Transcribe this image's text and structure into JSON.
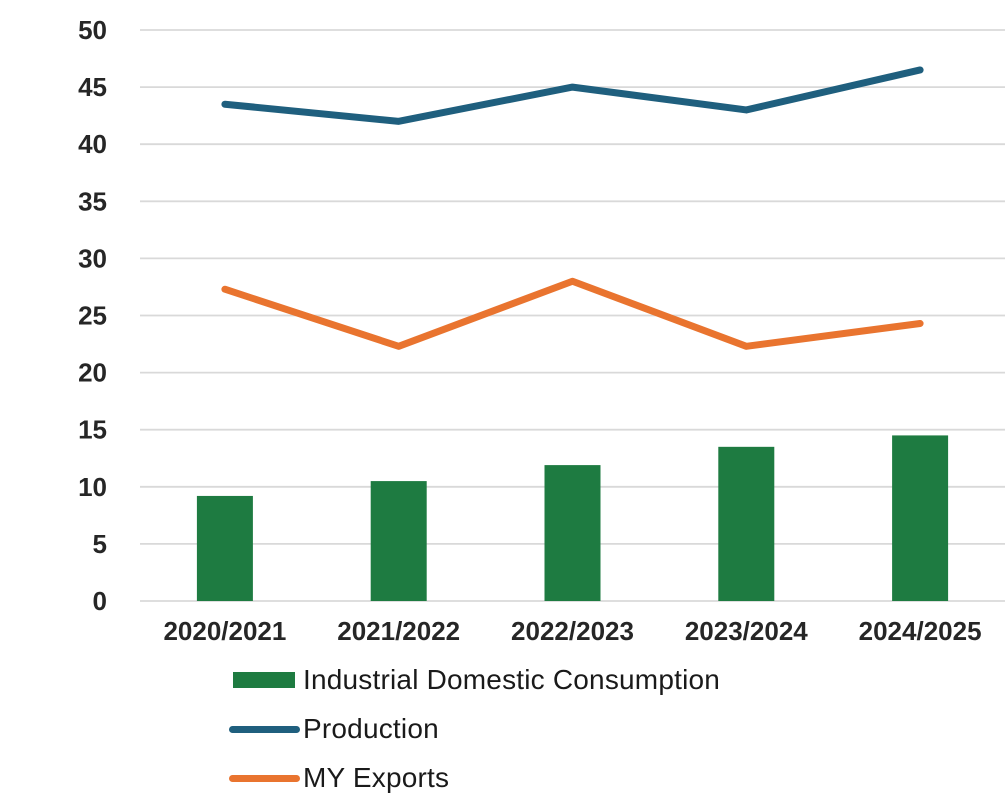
{
  "chart_data": {
    "type": "combo",
    "categories": [
      "2020/2021",
      "2021/2022",
      "2022/2023",
      "2023/2024",
      "2024/2025"
    ],
    "series": [
      {
        "name": "Industrial Domestic Consumption",
        "type": "bar",
        "color": "#1E7B41",
        "values": [
          9.2,
          10.5,
          11.9,
          13.5,
          14.5
        ]
      },
      {
        "name": "Production",
        "type": "line",
        "color": "#1F5F7E",
        "values": [
          43.5,
          42.0,
          45.0,
          43.0,
          46.5
        ]
      },
      {
        "name": "MY Exports",
        "type": "line",
        "color": "#E9742F",
        "values": [
          27.3,
          22.3,
          28.0,
          22.3,
          24.3
        ]
      }
    ],
    "title": "",
    "xlabel": "",
    "ylabel": "",
    "ylim": [
      0,
      50
    ],
    "yticks": [
      0,
      5,
      10,
      15,
      20,
      25,
      30,
      35,
      40,
      45,
      50
    ],
    "grid": true,
    "gridline_color": "#D9D9D9",
    "axis_text_color": "#262626",
    "background": "#FFFFFF",
    "legend_position": "bottom-left"
  },
  "legend": {
    "items": [
      {
        "label": "Industrial Domestic Consumption",
        "swatch": "bar",
        "color": "#1E7B41"
      },
      {
        "label": "Production",
        "swatch": "line",
        "color": "#1F5F7E"
      },
      {
        "label": "MY Exports",
        "swatch": "line",
        "color": "#E9742F"
      }
    ]
  }
}
